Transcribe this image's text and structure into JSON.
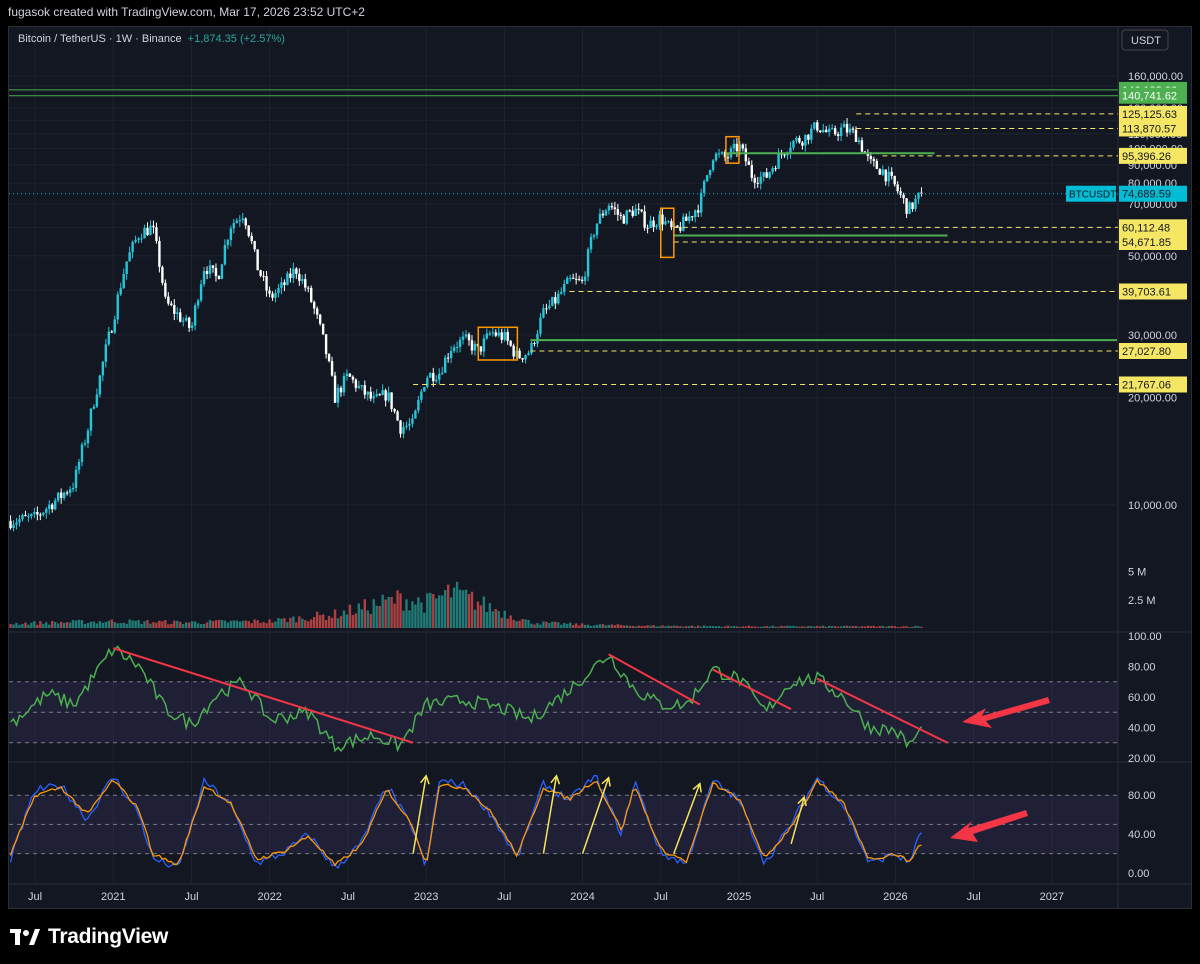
{
  "credit": "fugasok created with TradingView.com, Mar 17, 2026 23:52 UTC+2",
  "legend": {
    "symbol": "Bitcoin / TetherUS · 1W · Binance",
    "change": "+1,874.35 (+2.57%)"
  },
  "brand": {
    "name": "TradingView",
    "logo": "tradingview-logo"
  },
  "colors": {
    "background": "#131722",
    "up": "#26c6da",
    "down": "#ffffff",
    "support": "#4caf50",
    "level": "#f5e663",
    "rsi": "#4caf50",
    "trend": "#f23645",
    "arrow": "#f7e55e",
    "stoch_k": "#2962ff",
    "stoch_d": "#ff9800",
    "last_price": "#00bcd4"
  },
  "chart_data": {
    "type": "candlestick",
    "currency": "USDT",
    "scale": "log",
    "x_range": [
      "2020-05",
      "2027-06"
    ],
    "y_range": [
      7000,
      175000
    ],
    "price_ticks": [
      "10,000.00",
      "20,000.00",
      "30,000.00",
      "40,000.00",
      "50,000.00",
      "60,000.00",
      "70,000.00",
      "80,000.00",
      "90,000.00",
      "100,000.00",
      "110,000.00",
      "120,000.00",
      "130,000.00",
      "150,000.00",
      "160,000.00"
    ],
    "price_tick_values": [
      10000,
      20000,
      30000,
      40000,
      50000,
      60000,
      70000,
      80000,
      90000,
      100000,
      110000,
      120000,
      130000,
      150000,
      160000
    ],
    "time_ticks": [
      {
        "label": "Jul",
        "date": "2020-07"
      },
      {
        "label": "2021",
        "date": "2021-01"
      },
      {
        "label": "Jul",
        "date": "2021-07"
      },
      {
        "label": "2022",
        "date": "2022-01"
      },
      {
        "label": "Jul",
        "date": "2022-07"
      },
      {
        "label": "2023",
        "date": "2023-01"
      },
      {
        "label": "Jul",
        "date": "2023-07"
      },
      {
        "label": "2024",
        "date": "2024-01"
      },
      {
        "label": "Jul",
        "date": "2024-07"
      },
      {
        "label": "2025",
        "date": "2025-01"
      },
      {
        "label": "Jul",
        "date": "2025-07"
      },
      {
        "label": "2026",
        "date": "2026-01"
      },
      {
        "label": "Jul",
        "date": "2026-07"
      },
      {
        "label": "2027",
        "date": "2027-01"
      }
    ],
    "price_path": [
      [
        "2020-05",
        9000
      ],
      [
        "2020-07",
        9200
      ],
      [
        "2020-09",
        10600
      ],
      [
        "2020-10",
        11500
      ],
      [
        "2020-11",
        16000
      ],
      [
        "2020-12",
        23000
      ],
      [
        "2021-01",
        33000
      ],
      [
        "2021-02",
        48000
      ],
      [
        "2021-03",
        58000
      ],
      [
        "2021-04",
        60000
      ],
      [
        "2021-05",
        37000
      ],
      [
        "2021-06",
        34000
      ],
      [
        "2021-07",
        31000
      ],
      [
        "2021-08",
        47000
      ],
      [
        "2021-09",
        43000
      ],
      [
        "2021-10",
        61000
      ],
      [
        "2021-11",
        66000
      ],
      [
        "2021-12",
        47000
      ],
      [
        "2022-01",
        38000
      ],
      [
        "2022-02",
        41000
      ],
      [
        "2022-03",
        46000
      ],
      [
        "2022-04",
        39000
      ],
      [
        "2022-05",
        30000
      ],
      [
        "2022-06",
        20000
      ],
      [
        "2022-07",
        23000
      ],
      [
        "2022-08",
        21000
      ],
      [
        "2022-09",
        19500
      ],
      [
        "2022-10",
        20500
      ],
      [
        "2022-11",
        16500
      ],
      [
        "2022-12",
        16800
      ],
      [
        "2023-01",
        23000
      ],
      [
        "2023-02",
        23500
      ],
      [
        "2023-03",
        28000
      ],
      [
        "2023-04",
        29000
      ],
      [
        "2023-05",
        27000
      ],
      [
        "2023-06",
        30500
      ],
      [
        "2023-07",
        29500
      ],
      [
        "2023-08",
        26000
      ],
      [
        "2023-09",
        27000
      ],
      [
        "2023-10",
        34500
      ],
      [
        "2023-11",
        37700
      ],
      [
        "2023-12",
        42500
      ],
      [
        "2024-01",
        42000
      ],
      [
        "2024-02",
        61000
      ],
      [
        "2024-03",
        70000
      ],
      [
        "2024-04",
        63500
      ],
      [
        "2024-05",
        67500
      ],
      [
        "2024-06",
        61000
      ],
      [
        "2024-07",
        64000
      ],
      [
        "2024-08",
        58000
      ],
      [
        "2024-09",
        63000
      ],
      [
        "2024-10",
        70000
      ],
      [
        "2024-11",
        96000
      ],
      [
        "2024-12",
        94000
      ],
      [
        "2025-01",
        102000
      ],
      [
        "2025-02",
        84000
      ],
      [
        "2025-03",
        82500
      ],
      [
        "2025-04",
        94000
      ],
      [
        "2025-05",
        104000
      ],
      [
        "2025-06",
        107000
      ],
      [
        "2025-07",
        116000
      ],
      [
        "2025-08",
        109000
      ],
      [
        "2025-09",
        114000
      ],
      [
        "2025-10",
        109000
      ],
      [
        "2025-11",
        91000
      ],
      [
        "2025-12",
        87000
      ],
      [
        "2026-01",
        78000
      ],
      [
        "2026-02",
        67000
      ],
      [
        "2026-03",
        74689
      ]
    ],
    "last_price": {
      "label": "BTCUSDT",
      "value": "74,689.59",
      "v": 74689.59
    },
    "levels": [
      {
        "label": "146,102.06",
        "value": 146102.06,
        "color": "#4caf50",
        "style": "solid",
        "start": "2020-05"
      },
      {
        "label": "140,741.62",
        "value": 140741.62,
        "color": "#4caf50",
        "style": "solid",
        "start": "2020-05"
      },
      {
        "label": "125,125.63",
        "value": 125125.63,
        "color": "#f5e663",
        "style": "dashed",
        "start": "2025-10"
      },
      {
        "label": "113,870.57",
        "value": 113870.57,
        "color": "#f5e663",
        "style": "dashed",
        "start": "2025-10"
      },
      {
        "label": "95,396.26",
        "value": 95396.26,
        "color": "#f5e663",
        "style": "dashed",
        "start": "2025-12"
      },
      {
        "label": "60,112.48",
        "value": 60112.48,
        "color": "#f5e663",
        "style": "dashed",
        "start": "2024-08"
      },
      {
        "label": "54,671.85",
        "value": 54671.85,
        "color": "#f5e663",
        "style": "dashed",
        "start": "2024-08"
      },
      {
        "label": "39,703.61",
        "value": 39703.61,
        "color": "#f5e663",
        "style": "dashed",
        "start": "2023-12"
      },
      {
        "label": "27,027.80",
        "value": 27027.8,
        "color": "#f5e663",
        "style": "dashed",
        "start": "2023-09"
      },
      {
        "label": "21,767.06",
        "value": 21767.06,
        "color": "#f5e663",
        "style": "dashed",
        "start": "2022-12"
      }
    ],
    "support_lines": [
      {
        "start": "2024-12",
        "end": "2026-04",
        "value": 97000
      },
      {
        "start": "2024-08",
        "end": "2026-05",
        "value": 57000
      },
      {
        "start": "2023-09",
        "end": "2027-06",
        "value": 29000
      }
    ],
    "volume": {
      "ticks": [
        "5 M",
        "2.5 M"
      ],
      "tick_values": [
        5,
        2.5
      ],
      "range": [
        0,
        5.5
      ],
      "series": [
        [
          "2020-05",
          0.4
        ],
        [
          "2021-01",
          0.6
        ],
        [
          "2021-06",
          0.5
        ],
        [
          "2022-01",
          0.6
        ],
        [
          "2022-06",
          1.2
        ],
        [
          "2022-11",
          2.6
        ],
        [
          "2023-01",
          2.2
        ],
        [
          "2023-03",
          3.2
        ],
        [
          "2023-06",
          1.8
        ],
        [
          "2023-09",
          0.5
        ],
        [
          "2024-01",
          0.3
        ],
        [
          "2024-06",
          0.2
        ],
        [
          "2025-01",
          0.15
        ],
        [
          "2026-03",
          0.15
        ]
      ]
    },
    "rsi": {
      "ticks": [
        "100.00",
        "80.00",
        "60.00",
        "40.00",
        "20.00"
      ],
      "tick_values": [
        100,
        80,
        60,
        40,
        20
      ],
      "range": [
        20,
        100
      ],
      "bands": [
        30,
        50,
        70
      ],
      "series": [
        [
          "2020-05",
          42
        ],
        [
          "2020-08",
          62
        ],
        [
          "2020-10",
          55
        ],
        [
          "2021-01",
          92
        ],
        [
          "2021-03",
          80
        ],
        [
          "2021-05",
          52
        ],
        [
          "2021-07",
          42
        ],
        [
          "2021-09",
          62
        ],
        [
          "2021-11",
          70
        ],
        [
          "2022-01",
          45
        ],
        [
          "2022-04",
          50
        ],
        [
          "2022-06",
          28
        ],
        [
          "2022-09",
          35
        ],
        [
          "2022-11",
          28
        ],
        [
          "2023-01",
          55
        ],
        [
          "2023-04",
          58
        ],
        [
          "2023-07",
          52
        ],
        [
          "2023-09",
          45
        ],
        [
          "2023-12",
          65
        ],
        [
          "2024-03",
          88
        ],
        [
          "2024-05",
          65
        ],
        [
          "2024-07",
          55
        ],
        [
          "2024-09",
          55
        ],
        [
          "2024-11",
          78
        ],
        [
          "2025-01",
          72
        ],
        [
          "2025-03",
          50
        ],
        [
          "2025-05",
          70
        ],
        [
          "2025-07",
          72
        ],
        [
          "2025-09",
          60
        ],
        [
          "2025-11",
          40
        ],
        [
          "2026-01",
          38
        ],
        [
          "2026-02",
          28
        ],
        [
          "2026-03",
          38
        ]
      ]
    },
    "stoch": {
      "ticks": [
        "80.00",
        "40.00",
        "0.00"
      ],
      "tick_values": [
        80,
        40,
        0
      ],
      "range": [
        -5,
        110
      ],
      "bands": [
        20,
        50,
        80
      ],
      "k_series": [
        [
          "2020-05",
          10
        ],
        [
          "2020-07",
          85
        ],
        [
          "2020-09",
          90
        ],
        [
          "2020-11",
          55
        ],
        [
          "2021-01",
          100
        ],
        [
          "2021-03",
          60
        ],
        [
          "2021-04",
          15
        ],
        [
          "2021-06",
          5
        ],
        [
          "2021-08",
          95
        ],
        [
          "2021-10",
          70
        ],
        [
          "2021-12",
          10
        ],
        [
          "2022-02",
          20
        ],
        [
          "2022-04",
          40
        ],
        [
          "2022-06",
          5
        ],
        [
          "2022-08",
          30
        ],
        [
          "2022-10",
          90
        ],
        [
          "2022-12",
          45
        ],
        [
          "2023-01",
          5
        ],
        [
          "2023-02",
          95
        ],
        [
          "2023-04",
          90
        ],
        [
          "2023-06",
          60
        ],
        [
          "2023-08",
          15
        ],
        [
          "2023-10",
          92
        ],
        [
          "2023-12",
          75
        ],
        [
          "2024-02",
          100
        ],
        [
          "2024-04",
          40
        ],
        [
          "2024-05",
          95
        ],
        [
          "2024-07",
          20
        ],
        [
          "2024-09",
          10
        ],
        [
          "2024-11",
          95
        ],
        [
          "2025-01",
          75
        ],
        [
          "2025-03",
          10
        ],
        [
          "2025-05",
          50
        ],
        [
          "2025-07",
          98
        ],
        [
          "2025-09",
          70
        ],
        [
          "2025-11",
          10
        ],
        [
          "2026-01",
          20
        ],
        [
          "2026-02",
          10
        ],
        [
          "2026-03",
          42
        ]
      ],
      "d_series": [
        [
          "2020-05",
          15
        ],
        [
          "2020-07",
          80
        ],
        [
          "2020-09",
          88
        ],
        [
          "2020-11",
          60
        ],
        [
          "2021-01",
          96
        ],
        [
          "2021-03",
          65
        ],
        [
          "2021-04",
          20
        ],
        [
          "2021-06",
          8
        ],
        [
          "2021-08",
          90
        ],
        [
          "2021-10",
          72
        ],
        [
          "2021-12",
          14
        ],
        [
          "2022-02",
          22
        ],
        [
          "2022-04",
          38
        ],
        [
          "2022-06",
          8
        ],
        [
          "2022-08",
          28
        ],
        [
          "2022-10",
          86
        ],
        [
          "2022-12",
          48
        ],
        [
          "2023-01",
          8
        ],
        [
          "2023-02",
          90
        ],
        [
          "2023-04",
          88
        ],
        [
          "2023-06",
          62
        ],
        [
          "2023-08",
          18
        ],
        [
          "2023-10",
          88
        ],
        [
          "2023-12",
          76
        ],
        [
          "2024-02",
          96
        ],
        [
          "2024-04",
          44
        ],
        [
          "2024-05",
          90
        ],
        [
          "2024-07",
          24
        ],
        [
          "2024-09",
          12
        ],
        [
          "2024-11",
          92
        ],
        [
          "2025-01",
          76
        ],
        [
          "2025-03",
          14
        ],
        [
          "2025-05",
          48
        ],
        [
          "2025-07",
          94
        ],
        [
          "2025-09",
          72
        ],
        [
          "2025-11",
          14
        ],
        [
          "2026-01",
          20
        ],
        [
          "2026-02",
          12
        ],
        [
          "2026-03",
          30
        ]
      ]
    },
    "rsi_trendlines": [
      {
        "from": [
          "2021-01",
          92
        ],
        "to": [
          "2022-12",
          30
        ]
      },
      {
        "from": [
          "2024-03",
          88
        ],
        "to": [
          "2024-10",
          55
        ]
      },
      {
        "from": [
          "2024-11",
          78
        ],
        "to": [
          "2025-05",
          52
        ]
      },
      {
        "from": [
          "2025-07",
          72
        ],
        "to": [
          "2026-05",
          30
        ]
      }
    ],
    "stoch_arrows": [
      {
        "from": [
          "2022-12",
          20
        ],
        "to": [
          "2023-01",
          100
        ]
      },
      {
        "from": [
          "2023-10",
          20
        ],
        "to": [
          "2023-11",
          100
        ]
      },
      {
        "from": [
          "2024-01",
          20
        ],
        "to": [
          "2024-03",
          98
        ]
      },
      {
        "from": [
          "2024-08",
          20
        ],
        "to": [
          "2024-10",
          92
        ]
      },
      {
        "from": [
          "2025-05",
          30
        ],
        "to": [
          "2025-06",
          78
        ]
      }
    ]
  }
}
